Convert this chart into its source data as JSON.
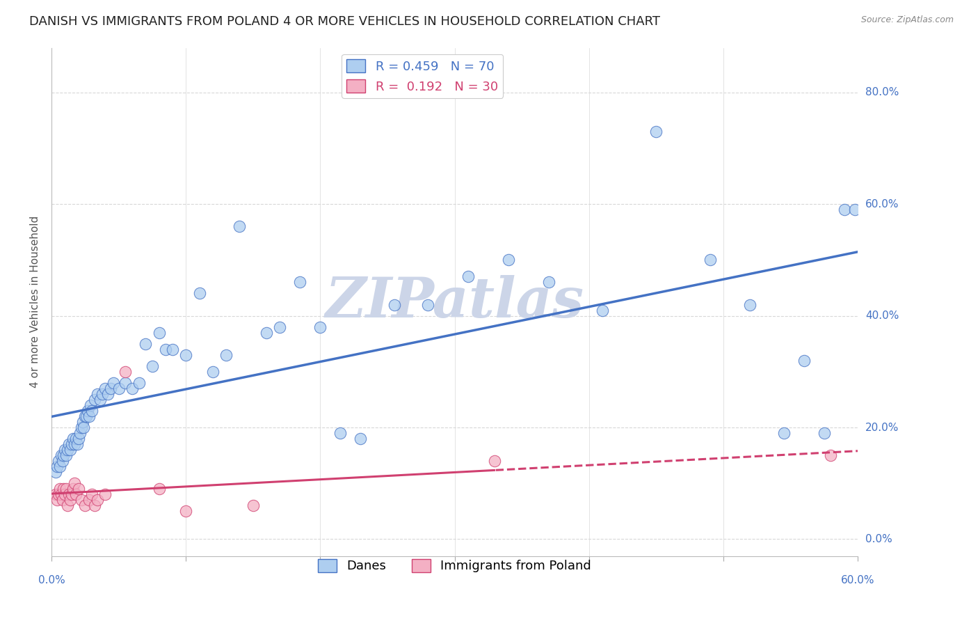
{
  "title": "DANISH VS IMMIGRANTS FROM POLAND 4 OR MORE VEHICLES IN HOUSEHOLD CORRELATION CHART",
  "source": "Source: ZipAtlas.com",
  "ylabel": "4 or more Vehicles in Household",
  "ytick_labels": [
    "0.0%",
    "20.0%",
    "40.0%",
    "60.0%",
    "80.0%"
  ],
  "ytick_values": [
    0.0,
    0.2,
    0.4,
    0.6,
    0.8
  ],
  "xlim": [
    0.0,
    0.6
  ],
  "ylim": [
    -0.03,
    0.88
  ],
  "danes_color": "#aecef0",
  "danes_line_color": "#4472c4",
  "poland_color": "#f4b0c4",
  "poland_line_color": "#d04070",
  "legend_blue_label": "R = 0.459   N = 70",
  "legend_pink_label": "R =  0.192   N = 30",
  "danes_label": "Danes",
  "poland_label": "Immigrants from Poland",
  "danes_R": 0.459,
  "danes_N": 70,
  "poland_R": 0.192,
  "poland_N": 30,
  "danes_x": [
    0.003,
    0.004,
    0.005,
    0.006,
    0.007,
    0.008,
    0.009,
    0.01,
    0.011,
    0.012,
    0.013,
    0.014,
    0.015,
    0.016,
    0.017,
    0.018,
    0.019,
    0.02,
    0.021,
    0.022,
    0.023,
    0.024,
    0.025,
    0.026,
    0.027,
    0.028,
    0.029,
    0.03,
    0.032,
    0.034,
    0.036,
    0.038,
    0.04,
    0.042,
    0.044,
    0.046,
    0.05,
    0.055,
    0.06,
    0.065,
    0.07,
    0.075,
    0.08,
    0.085,
    0.09,
    0.1,
    0.11,
    0.12,
    0.13,
    0.14,
    0.16,
    0.17,
    0.185,
    0.2,
    0.215,
    0.23,
    0.255,
    0.28,
    0.31,
    0.34,
    0.37,
    0.41,
    0.45,
    0.49,
    0.52,
    0.545,
    0.56,
    0.575,
    0.59,
    0.598
  ],
  "danes_y": [
    0.12,
    0.13,
    0.14,
    0.13,
    0.15,
    0.14,
    0.15,
    0.16,
    0.15,
    0.16,
    0.17,
    0.16,
    0.17,
    0.18,
    0.17,
    0.18,
    0.17,
    0.18,
    0.19,
    0.2,
    0.21,
    0.2,
    0.22,
    0.22,
    0.23,
    0.22,
    0.24,
    0.23,
    0.25,
    0.26,
    0.25,
    0.26,
    0.27,
    0.26,
    0.27,
    0.28,
    0.27,
    0.28,
    0.27,
    0.28,
    0.35,
    0.31,
    0.37,
    0.34,
    0.34,
    0.33,
    0.44,
    0.3,
    0.33,
    0.56,
    0.37,
    0.38,
    0.46,
    0.38,
    0.19,
    0.18,
    0.42,
    0.42,
    0.47,
    0.5,
    0.46,
    0.41,
    0.73,
    0.5,
    0.42,
    0.19,
    0.32,
    0.19,
    0.59,
    0.59
  ],
  "poland_x": [
    0.003,
    0.004,
    0.005,
    0.006,
    0.007,
    0.008,
    0.009,
    0.01,
    0.011,
    0.012,
    0.013,
    0.014,
    0.015,
    0.016,
    0.017,
    0.018,
    0.02,
    0.022,
    0.025,
    0.028,
    0.03,
    0.032,
    0.034,
    0.04,
    0.055,
    0.08,
    0.1,
    0.15,
    0.33,
    0.58
  ],
  "poland_y": [
    0.08,
    0.07,
    0.08,
    0.09,
    0.08,
    0.07,
    0.09,
    0.08,
    0.09,
    0.06,
    0.08,
    0.07,
    0.08,
    0.09,
    0.1,
    0.08,
    0.09,
    0.07,
    0.06,
    0.07,
    0.08,
    0.06,
    0.07,
    0.08,
    0.3,
    0.09,
    0.05,
    0.06,
    0.14,
    0.15
  ],
  "background_color": "#ffffff",
  "grid_color": "#d8d8d8",
  "watermark": "ZIPatlas",
  "watermark_color": "#ccd5e8",
  "title_fontsize": 13,
  "axis_label_fontsize": 11,
  "tick_fontsize": 11,
  "legend_fontsize": 13,
  "danes_line_solid_end": 0.6,
  "poland_line_solid_end": 0.33
}
